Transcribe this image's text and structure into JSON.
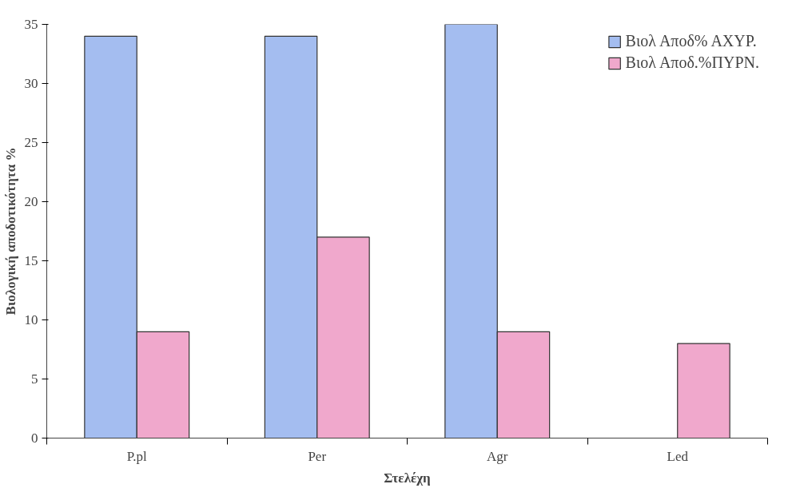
{
  "chart_data": {
    "type": "bar",
    "xlabel": "Στελέχη",
    "ylabel": "Βιολογική αποδοτικότητα %",
    "categories": [
      "P.pl",
      "Per",
      "Agr",
      "Led"
    ],
    "series": [
      {
        "name": "Βιολ Αποδ% ΑΧΥΡ.",
        "color": "#a4bdf0",
        "values": [
          34,
          34,
          35,
          null
        ]
      },
      {
        "name": "Βιολ Αποδ.%ΠΥΡΝ.",
        "color": "#f0a8cc",
        "values": [
          9,
          17,
          9,
          8
        ]
      }
    ],
    "ylim": [
      0,
      35
    ],
    "yticks": [
      0,
      5,
      10,
      15,
      20,
      25,
      30,
      35
    ],
    "grid": false,
    "legend": "top right"
  }
}
